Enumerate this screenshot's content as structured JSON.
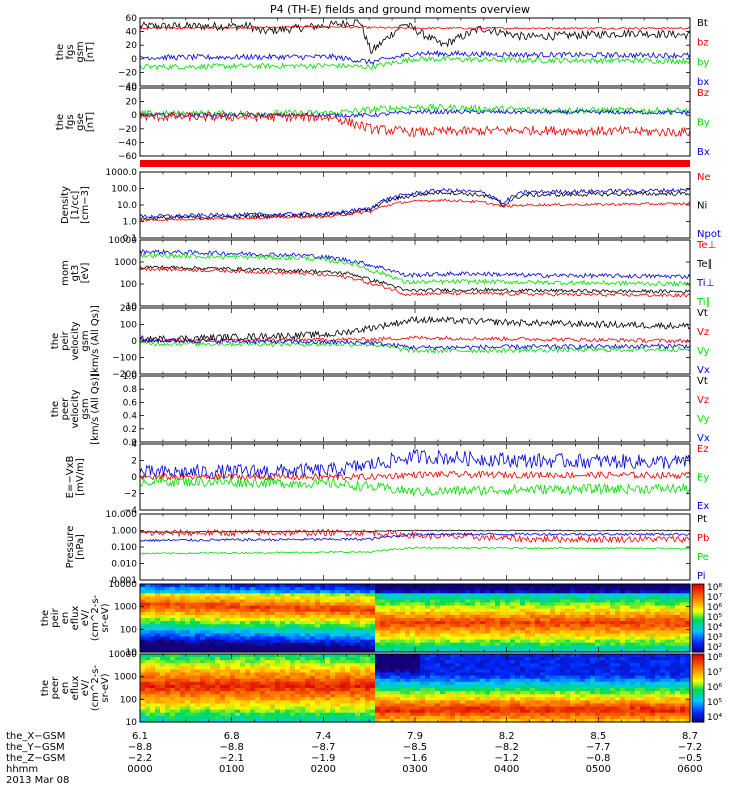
{
  "title": "P4 (TH-E) fields and ground moments overview",
  "colors": {
    "black": "#000000",
    "red": "#ee0000",
    "green": "#00dd00",
    "blue": "#0000dd"
  },
  "chart_data": [
    {
      "type": "line",
      "name": "fgs-gsm",
      "ylabel": [
        "the",
        "fgs",
        "gsm",
        "[nT]"
      ],
      "yticks": [
        "60",
        "40",
        "20",
        "0",
        "−20",
        "−40"
      ],
      "ylim": [
        -40,
        60
      ],
      "legend": [
        {
          "label": "Bt",
          "color": "black"
        },
        {
          "label": "bz",
          "color": "red"
        },
        {
          "label": "by",
          "color": "green"
        },
        {
          "label": "bx",
          "color": "blue"
        }
      ],
      "series": [
        {
          "color": "black",
          "points": [
            [
              0,
              48
            ],
            [
              0.2,
              48
            ],
            [
              0.22,
              40
            ],
            [
              0.35,
              50
            ],
            [
              0.4,
              55
            ],
            [
              0.42,
              10
            ],
            [
              0.48,
              52
            ],
            [
              0.55,
              20
            ],
            [
              0.62,
              45
            ],
            [
              0.7,
              32
            ],
            [
              0.8,
              35
            ],
            [
              0.9,
              38
            ],
            [
              1,
              35
            ]
          ],
          "noise": 6
        },
        {
          "color": "red",
          "points": [
            [
              0,
              45
            ],
            [
              0.35,
              47
            ],
            [
              0.42,
              46
            ],
            [
              0.5,
              45
            ],
            [
              1,
              45
            ]
          ],
          "noise": 1.5
        },
        {
          "color": "green",
          "points": [
            [
              0,
              -12
            ],
            [
              0.35,
              -10
            ],
            [
              0.42,
              -12
            ],
            [
              0.5,
              0
            ],
            [
              0.7,
              -2
            ],
            [
              1,
              -3
            ]
          ],
          "noise": 4
        },
        {
          "color": "blue",
          "points": [
            [
              0,
              2
            ],
            [
              0.35,
              3
            ],
            [
              0.42,
              -5
            ],
            [
              0.5,
              8
            ],
            [
              0.7,
              6
            ],
            [
              1,
              5
            ]
          ],
          "noise": 4
        }
      ]
    },
    {
      "type": "line",
      "name": "fgs-gse",
      "ylabel": [
        "the",
        "fgs",
        "gse",
        "[nT]"
      ],
      "yticks": [
        "40",
        "20",
        "0",
        "−20",
        "−40",
        "−60"
      ],
      "ylim": [
        -60,
        40
      ],
      "legend": [
        {
          "label": "Bz",
          "color": "red"
        },
        {
          "label": "By",
          "color": "green"
        },
        {
          "label": "Bx",
          "color": "blue"
        }
      ],
      "series": [
        {
          "color": "green",
          "points": [
            [
              0,
              2
            ],
            [
              0.35,
              3
            ],
            [
              0.42,
              8
            ],
            [
              0.5,
              12
            ],
            [
              0.7,
              8
            ],
            [
              1,
              6
            ]
          ],
          "noise": 5
        },
        {
          "color": "blue",
          "points": [
            [
              0,
              0
            ],
            [
              0.42,
              0
            ],
            [
              0.5,
              5
            ],
            [
              1,
              4
            ]
          ],
          "noise": 3
        },
        {
          "color": "red",
          "points": [
            [
              0,
              -2
            ],
            [
              0.35,
              -3
            ],
            [
              0.42,
              -20
            ],
            [
              0.5,
              -25
            ],
            [
              0.7,
              -22
            ],
            [
              1,
              -25
            ]
          ],
          "noise": 7
        }
      ]
    },
    {
      "type": "line",
      "name": "ground-moments-density",
      "ylabel": [
        "Density",
        "[1/cc]",
        "[cm−3]"
      ],
      "yticks": [
        "1000.0",
        "100.0",
        "10.0",
        "1.0",
        "0.1"
      ],
      "ylim": [
        0.1,
        1000
      ],
      "log": true,
      "legend": [
        {
          "label": "Ne",
          "color": "red"
        },
        {
          "label": "Ni",
          "color": "black"
        },
        {
          "label": "Npot",
          "color": "blue"
        }
      ],
      "series": [
        {
          "color": "black",
          "points": [
            [
              0,
              1.5
            ],
            [
              0.35,
              2.5
            ],
            [
              0.42,
              5
            ],
            [
              0.48,
              30
            ],
            [
              0.55,
              60
            ],
            [
              0.62,
              40
            ],
            [
              0.66,
              8
            ],
            [
              0.7,
              40
            ],
            [
              1,
              50
            ]
          ],
          "noise": 0.12
        },
        {
          "color": "blue",
          "points": [
            [
              0,
              2
            ],
            [
              0.35,
              3
            ],
            [
              0.42,
              6
            ],
            [
              0.48,
              40
            ],
            [
              0.55,
              80
            ],
            [
              0.62,
              60
            ],
            [
              0.66,
              10
            ],
            [
              0.7,
              60
            ],
            [
              1,
              80
            ]
          ],
          "noise": 0.12
        },
        {
          "color": "red",
          "points": [
            [
              0,
              1.2
            ],
            [
              0.35,
              2
            ],
            [
              0.42,
              4
            ],
            [
              0.48,
              15
            ],
            [
              0.55,
              20
            ],
            [
              0.62,
              15
            ],
            [
              0.66,
              8
            ],
            [
              0.7,
              10
            ],
            [
              1,
              12
            ]
          ],
          "noise": 0.08
        }
      ]
    },
    {
      "type": "line",
      "name": "temperature",
      "ylabel": [
        "mom",
        "gt3",
        "[eV]"
      ],
      "yticks": [
        "10000",
        "1000",
        "100",
        "10"
      ],
      "ylim": [
        10,
        10000
      ],
      "log": true,
      "legend": [
        {
          "label": "Te⊥",
          "color": "red"
        },
        {
          "label": "Te∥",
          "color": "black"
        },
        {
          "label": "Ti⊥",
          "color": "blue"
        },
        {
          "label": "Ti∥",
          "color": "green"
        }
      ],
      "series": [
        {
          "color": "blue",
          "points": [
            [
              0,
              3000
            ],
            [
              0.3,
              2000
            ],
            [
              0.38,
              1200
            ],
            [
              0.42,
              700
            ],
            [
              0.48,
              250
            ],
            [
              0.6,
              300
            ],
            [
              0.7,
              250
            ],
            [
              1,
              220
            ]
          ],
          "noise": 0.1
        },
        {
          "color": "green",
          "points": [
            [
              0,
              2000
            ],
            [
              0.3,
              1500
            ],
            [
              0.38,
              900
            ],
            [
              0.42,
              400
            ],
            [
              0.48,
              120
            ],
            [
              0.6,
              130
            ],
            [
              0.7,
              120
            ],
            [
              1,
              100
            ]
          ],
          "noise": 0.1
        },
        {
          "color": "black",
          "points": [
            [
              0,
              600
            ],
            [
              0.3,
              400
            ],
            [
              0.38,
              300
            ],
            [
              0.42,
              150
            ],
            [
              0.48,
              50
            ],
            [
              0.6,
              55
            ],
            [
              0.7,
              50
            ],
            [
              1,
              45
            ]
          ],
          "noise": 0.08
        },
        {
          "color": "red",
          "points": [
            [
              0,
              500
            ],
            [
              0.3,
              300
            ],
            [
              0.38,
              200
            ],
            [
              0.42,
              100
            ],
            [
              0.48,
              35
            ],
            [
              0.6,
              38
            ],
            [
              0.7,
              35
            ],
            [
              1,
              30
            ]
          ],
          "noise": 0.08
        }
      ]
    },
    {
      "type": "line",
      "name": "velocity-gsm",
      "ylabel": [
        "the",
        "peir",
        "velocity",
        "gsm",
        "[km/s (All Qs)]"
      ],
      "yticks": [
        "200",
        "100",
        "0",
        "−100",
        "−200"
      ],
      "ylim": [
        -200,
        200
      ],
      "legend": [
        {
          "label": "Vt",
          "color": "black"
        },
        {
          "label": "Vz",
          "color": "red"
        },
        {
          "label": "Vy",
          "color": "green"
        },
        {
          "label": "Vx",
          "color": "blue"
        }
      ],
      "series": [
        {
          "color": "black",
          "points": [
            [
              0,
              10
            ],
            [
              0.35,
              40
            ],
            [
              0.42,
              80
            ],
            [
              0.5,
              130
            ],
            [
              0.7,
              110
            ],
            [
              1,
              90
            ]
          ],
          "noise": 20
        },
        {
          "color": "red",
          "points": [
            [
              0,
              0
            ],
            [
              0.42,
              10
            ],
            [
              0.5,
              20
            ],
            [
              1,
              0
            ]
          ],
          "noise": 12
        },
        {
          "color": "green",
          "points": [
            [
              0,
              -15
            ],
            [
              0.42,
              -20
            ],
            [
              0.5,
              -60
            ],
            [
              1,
              -50
            ]
          ],
          "noise": 14
        },
        {
          "color": "blue",
          "points": [
            [
              0,
              5
            ],
            [
              0.42,
              -10
            ],
            [
              0.5,
              -40
            ],
            [
              1,
              -30
            ]
          ],
          "noise": 14
        }
      ]
    },
    {
      "type": "line",
      "name": "velocity-gse",
      "ylabel": [
        "the",
        "peer",
        "velocity",
        "gsm",
        "[km/s (All Qs)]"
      ],
      "yticks": [
        "1.0",
        "0.8",
        "0.6",
        "0.4",
        "0.2",
        "0.0"
      ],
      "ylim": [
        0,
        1
      ],
      "legend": [
        {
          "label": "Vt",
          "color": "black"
        },
        {
          "label": "Vz",
          "color": "red"
        },
        {
          "label": "Vy",
          "color": "green"
        },
        {
          "label": "Vx",
          "color": "blue"
        }
      ],
      "series": []
    },
    {
      "type": "line",
      "name": "e-field",
      "ylabel": [
        "E=−VxB",
        "[mV/m]"
      ],
      "yticks": [
        "4",
        "2",
        "0",
        "−2",
        "−4"
      ],
      "ylim": [
        -4,
        4
      ],
      "legend": [
        {
          "label": "Ez",
          "color": "red"
        },
        {
          "label": "Ey",
          "color": "green"
        },
        {
          "label": "Ex",
          "color": "blue"
        }
      ],
      "series": [
        {
          "color": "blue",
          "points": [
            [
              0,
              0.5
            ],
            [
              0.35,
              0.8
            ],
            [
              0.42,
              1.5
            ],
            [
              0.5,
              2.5
            ],
            [
              0.7,
              2
            ],
            [
              1,
              1.8
            ]
          ],
          "noise": 0.9
        },
        {
          "color": "red",
          "points": [
            [
              0,
              0
            ],
            [
              0.42,
              0
            ],
            [
              0.5,
              0.3
            ],
            [
              1,
              0.2
            ]
          ],
          "noise": 0.4
        },
        {
          "color": "green",
          "points": [
            [
              0,
              -0.5
            ],
            [
              0.35,
              -0.8
            ],
            [
              0.42,
              -1.2
            ],
            [
              0.5,
              -1.8
            ],
            [
              0.7,
              -1.5
            ],
            [
              1,
              -1.4
            ]
          ],
          "noise": 0.6
        }
      ]
    },
    {
      "type": "line",
      "name": "pressure",
      "ylabel": [
        "Pressure",
        "[nPa]"
      ],
      "yticks": [
        "10.000",
        "1.000",
        "0.100",
        "0.010",
        "0.001"
      ],
      "ylim": [
        0.001,
        10
      ],
      "log": true,
      "legend": [
        {
          "label": "Pt",
          "color": "black"
        },
        {
          "label": "Pb",
          "color": "red"
        },
        {
          "label": "Pe",
          "color": "green"
        },
        {
          "label": "Pi",
          "color": "blue"
        }
      ],
      "series": [
        {
          "color": "black",
          "points": [
            [
              0,
              0.8
            ],
            [
              0.42,
              0.9
            ],
            [
              0.5,
              1
            ],
            [
              1,
              1
            ]
          ],
          "noise": 0.03
        },
        {
          "color": "red",
          "points": [
            [
              0,
              0.7
            ],
            [
              0.42,
              0.75
            ],
            [
              0.5,
              0.5
            ],
            [
              0.7,
              0.3
            ],
            [
              1,
              0.3
            ]
          ],
          "noise": 0.2
        },
        {
          "color": "blue",
          "points": [
            [
              0,
              0.25
            ],
            [
              0.42,
              0.3
            ],
            [
              0.5,
              0.6
            ],
            [
              1,
              0.6
            ]
          ],
          "noise": 0.08
        },
        {
          "color": "green",
          "points": [
            [
              0,
              0.04
            ],
            [
              0.42,
              0.05
            ],
            [
              0.5,
              0.09
            ],
            [
              1,
              0.08
            ]
          ],
          "noise": 0.05
        }
      ]
    },
    {
      "type": "heatmap",
      "name": "ion-energy-spectrogram",
      "ylabel": [
        "the",
        "peir",
        "en",
        "eflux",
        "eV/",
        "(cm^2-s-",
        "sr-eV)"
      ],
      "yticks": [
        "10000",
        "1000",
        "100",
        "10"
      ],
      "ylim": [
        10,
        10000
      ],
      "log": true,
      "colorbar": [
        "10⁸",
        "10⁷",
        "10⁶",
        "10⁵",
        "10⁴",
        "10³",
        "10²"
      ]
    },
    {
      "type": "heatmap",
      "name": "electron-energy-spectrogram",
      "ylabel": [
        "the",
        "peer",
        "en",
        "eflux",
        "eV/",
        "(cm^2-s-",
        "sr-eV)"
      ],
      "yticks": [
        "10000",
        "1000",
        "100",
        "10"
      ],
      "ylim": [
        10,
        10000
      ],
      "log": true,
      "colorbar": [
        "10⁸",
        "10⁷",
        "10⁶",
        "10⁵",
        "10⁴"
      ]
    }
  ],
  "x_axis": {
    "labels": [
      "the_X−GSM",
      "the_Y−GSM",
      "the_Z−GSM",
      "hhmm",
      "2013 Mar 08"
    ],
    "ticks": [
      {
        "x": "6.1",
        "y": "−8.8",
        "z": "−2.2",
        "t": "0000"
      },
      {
        "x": "6.8",
        "y": "−8.8",
        "z": "−2.1",
        "t": "0100"
      },
      {
        "x": "7.4",
        "y": "−8.7",
        "z": "−1.9",
        "t": "0200"
      },
      {
        "x": "7.9",
        "y": "−8.5",
        "z": "−1.6",
        "t": "0300"
      },
      {
        "x": "8.2",
        "y": "−8.2",
        "z": "−1.2",
        "t": "0400"
      },
      {
        "x": "8.5",
        "y": "−7.7",
        "z": "−0.8",
        "t": "0500"
      },
      {
        "x": "8.7",
        "y": "−7.2",
        "z": "−0.5",
        "t": "0600"
      }
    ]
  }
}
